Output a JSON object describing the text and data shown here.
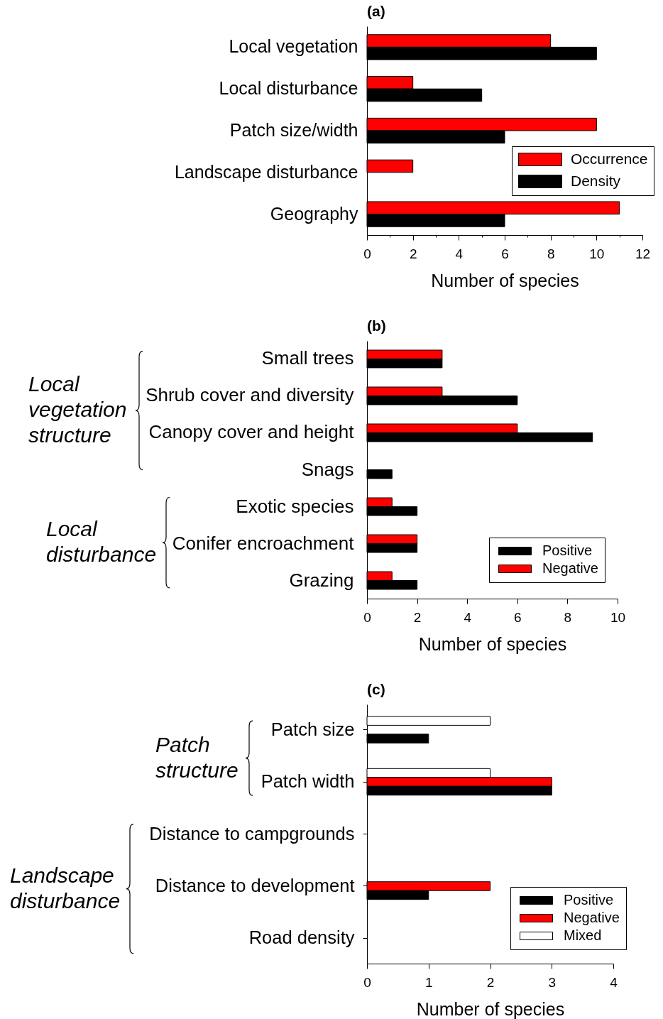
{
  "chart_data": [
    {
      "type": "bar",
      "orientation": "horizontal",
      "title": "(a)",
      "xlabel": "Number of species",
      "categories": [
        "Local vegetation",
        "Local disturbance",
        "Patch size/width",
        "Landscape disturbance",
        "Geography"
      ],
      "series": [
        {
          "name": "Occurrence",
          "color": "#ff0000",
          "values": [
            8,
            2,
            10,
            2,
            11
          ]
        },
        {
          "name": "Density",
          "color": "#000000",
          "values": [
            10,
            5,
            6,
            null,
            6
          ]
        }
      ],
      "xlim": [
        0,
        12
      ],
      "xticks": [
        0,
        {
          "value": 1,
          "label": null
        },
        2,
        {
          "value": 3,
          "label": null
        },
        4,
        {
          "value": 5,
          "label": null
        },
        6,
        {
          "value": 7,
          "label": null
        },
        8,
        {
          "value": 9,
          "label": null
        },
        10,
        {
          "value": 11,
          "label": null
        },
        12
      ],
      "legend": "right"
    },
    {
      "type": "bar",
      "orientation": "horizontal",
      "title": "(b)",
      "xlabel": "Number of species",
      "categories": [
        "Small trees",
        "Shrub cover and diversity",
        "Canopy cover and height",
        "Snags",
        "Exotic species",
        "Conifer encroachment",
        "Grazing"
      ],
      "series": [
        {
          "name": "Negative",
          "color": "#ff0000",
          "values": [
            3,
            3,
            6,
            null,
            1,
            2,
            1
          ]
        },
        {
          "name": "Positive",
          "color": "#000000",
          "values": [
            3,
            6,
            9,
            1,
            2,
            2,
            2
          ]
        }
      ],
      "xlim": [
        0,
        10
      ],
      "xticks": [
        0,
        2,
        4,
        6,
        8,
        10
      ],
      "legend": "bottom right",
      "annotations": [
        "Local vegetation structure",
        "Local disturbance"
      ]
    },
    {
      "type": "bar",
      "orientation": "horizontal",
      "title": "(c)",
      "xlabel": "Number of species",
      "categories": [
        "Patch size",
        "Patch width",
        "Distance to campgrounds",
        "Distance to development",
        "Road density"
      ],
      "series": [
        {
          "name": "Mixed",
          "color": "#ffffff",
          "values": [
            2,
            2,
            null,
            null,
            null
          ]
        },
        {
          "name": "Negative",
          "color": "#ff0000",
          "values": [
            null,
            3,
            null,
            2,
            null
          ]
        },
        {
          "name": "Positive",
          "color": "#000000",
          "values": [
            1,
            3,
            null,
            1,
            null
          ]
        }
      ],
      "xlim": [
        0,
        4
      ],
      "xticks": [
        0,
        1,
        2,
        3,
        4
      ],
      "legend": "bottom right",
      "annotations": [
        "Patch structure",
        "Landscape disturbance"
      ]
    }
  ]
}
